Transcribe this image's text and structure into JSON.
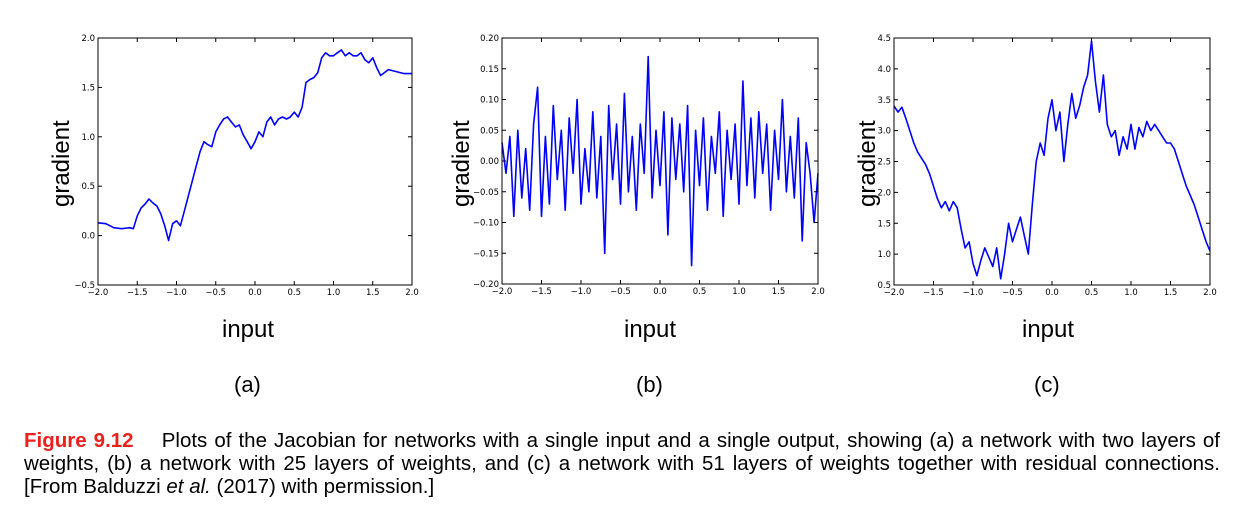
{
  "chart_data": [
    {
      "type": "line",
      "panel_label": "(a)",
      "xlabel": "input",
      "ylabel": "gradient",
      "xlim": [
        -2.0,
        2.0
      ],
      "ylim": [
        -0.5,
        2.0
      ],
      "xticks": [
        "−2.0",
        "−1.5",
        "−1.0",
        "−0.5",
        "0.0",
        "0.5",
        "1.0",
        "1.5",
        "2.0"
      ],
      "yticks": [
        "−0.5",
        "0.0",
        "0.5",
        "1.0",
        "1.5",
        "2.0"
      ],
      "x": [
        -2.0,
        -1.9,
        -1.8,
        -1.7,
        -1.6,
        -1.55,
        -1.5,
        -1.45,
        -1.4,
        -1.35,
        -1.3,
        -1.25,
        -1.2,
        -1.15,
        -1.1,
        -1.05,
        -1.0,
        -0.95,
        -0.9,
        -0.85,
        -0.8,
        -0.75,
        -0.7,
        -0.65,
        -0.6,
        -0.55,
        -0.5,
        -0.45,
        -0.4,
        -0.35,
        -0.3,
        -0.25,
        -0.2,
        -0.15,
        -0.1,
        -0.05,
        0.0,
        0.05,
        0.1,
        0.15,
        0.2,
        0.25,
        0.3,
        0.35,
        0.4,
        0.45,
        0.5,
        0.55,
        0.6,
        0.65,
        0.7,
        0.75,
        0.8,
        0.85,
        0.9,
        0.95,
        1.0,
        1.05,
        1.1,
        1.15,
        1.2,
        1.25,
        1.3,
        1.35,
        1.4,
        1.45,
        1.5,
        1.55,
        1.6,
        1.7,
        1.8,
        1.9,
        2.0
      ],
      "y": [
        0.13,
        0.12,
        0.08,
        0.07,
        0.08,
        0.07,
        0.2,
        0.28,
        0.32,
        0.37,
        0.33,
        0.3,
        0.22,
        0.1,
        -0.05,
        0.12,
        0.15,
        0.1,
        0.25,
        0.4,
        0.55,
        0.7,
        0.85,
        0.95,
        0.92,
        0.9,
        1.05,
        1.12,
        1.18,
        1.2,
        1.15,
        1.1,
        1.12,
        1.02,
        0.95,
        0.88,
        0.95,
        1.05,
        1.0,
        1.15,
        1.2,
        1.12,
        1.18,
        1.2,
        1.18,
        1.2,
        1.25,
        1.2,
        1.3,
        1.55,
        1.58,
        1.6,
        1.65,
        1.8,
        1.85,
        1.82,
        1.82,
        1.85,
        1.88,
        1.82,
        1.85,
        1.82,
        1.82,
        1.85,
        1.78,
        1.75,
        1.8,
        1.7,
        1.62,
        1.68,
        1.66,
        1.64,
        1.64
      ],
      "color": "#0000ff"
    },
    {
      "type": "line",
      "panel_label": "(b)",
      "xlabel": "input",
      "ylabel": "gradient",
      "xlim": [
        -2.0,
        2.0
      ],
      "ylim": [
        -0.2,
        0.2
      ],
      "xticks": [
        "−2.0",
        "−1.5",
        "−1.0",
        "−0.5",
        "0.0",
        "0.5",
        "1.0",
        "1.5",
        "2.0"
      ],
      "yticks": [
        "−0.20",
        "−0.15",
        "−0.10",
        "−0.05",
        "0.00",
        "0.05",
        "0.10",
        "0.15",
        "0.20"
      ],
      "x": [
        -2.0,
        -1.95,
        -1.9,
        -1.85,
        -1.8,
        -1.75,
        -1.7,
        -1.65,
        -1.6,
        -1.55,
        -1.5,
        -1.45,
        -1.4,
        -1.35,
        -1.3,
        -1.25,
        -1.2,
        -1.15,
        -1.1,
        -1.05,
        -1.0,
        -0.95,
        -0.9,
        -0.85,
        -0.8,
        -0.75,
        -0.7,
        -0.65,
        -0.6,
        -0.55,
        -0.5,
        -0.45,
        -0.4,
        -0.35,
        -0.3,
        -0.25,
        -0.2,
        -0.15,
        -0.1,
        -0.05,
        0.0,
        0.05,
        0.1,
        0.15,
        0.2,
        0.25,
        0.3,
        0.35,
        0.4,
        0.45,
        0.5,
        0.55,
        0.6,
        0.65,
        0.7,
        0.75,
        0.8,
        0.85,
        0.9,
        0.95,
        1.0,
        1.05,
        1.1,
        1.15,
        1.2,
        1.25,
        1.3,
        1.35,
        1.4,
        1.45,
        1.5,
        1.55,
        1.6,
        1.65,
        1.7,
        1.75,
        1.8,
        1.85,
        1.9,
        1.95,
        2.0
      ],
      "y": [
        0.03,
        -0.02,
        0.04,
        -0.09,
        0.05,
        -0.06,
        0.02,
        -0.08,
        0.06,
        0.12,
        -0.09,
        0.04,
        -0.07,
        0.09,
        -0.03,
        0.05,
        -0.08,
        0.07,
        -0.02,
        0.1,
        -0.07,
        0.02,
        -0.05,
        0.08,
        -0.06,
        0.04,
        -0.15,
        0.09,
        -0.03,
        0.06,
        -0.07,
        0.11,
        -0.05,
        0.04,
        -0.08,
        0.06,
        -0.02,
        0.17,
        -0.06,
        0.05,
        -0.04,
        0.08,
        -0.12,
        0.07,
        -0.03,
        0.06,
        -0.05,
        0.09,
        -0.17,
        0.05,
        -0.04,
        0.07,
        -0.08,
        0.04,
        -0.02,
        0.08,
        -0.09,
        0.05,
        -0.03,
        0.06,
        -0.07,
        0.13,
        -0.04,
        0.07,
        -0.06,
        0.08,
        -0.02,
        0.06,
        -0.08,
        0.05,
        -0.03,
        0.1,
        -0.05,
        0.04,
        -0.06,
        0.07,
        -0.13,
        0.03,
        -0.02,
        -0.1,
        -0.02
      ],
      "color": "#0000ff"
    },
    {
      "type": "line",
      "panel_label": "(c)",
      "xlabel": "input",
      "ylabel": "gradient",
      "xlim": [
        -2.0,
        2.0
      ],
      "ylim": [
        0.5,
        4.5
      ],
      "xticks": [
        "−2.0",
        "−1.5",
        "−1.0",
        "−0.5",
        "0.0",
        "0.5",
        "1.0",
        "1.5",
        "2.0"
      ],
      "yticks": [
        "0.5",
        "1.0",
        "1.5",
        "2.0",
        "2.5",
        "3.0",
        "3.5",
        "4.0",
        "4.5"
      ],
      "x": [
        -2.0,
        -1.95,
        -1.9,
        -1.85,
        -1.8,
        -1.75,
        -1.7,
        -1.65,
        -1.6,
        -1.55,
        -1.5,
        -1.45,
        -1.4,
        -1.35,
        -1.3,
        -1.25,
        -1.2,
        -1.15,
        -1.1,
        -1.05,
        -1.0,
        -0.95,
        -0.9,
        -0.85,
        -0.8,
        -0.75,
        -0.7,
        -0.65,
        -0.6,
        -0.55,
        -0.5,
        -0.45,
        -0.4,
        -0.35,
        -0.3,
        -0.25,
        -0.2,
        -0.15,
        -0.1,
        -0.05,
        0.0,
        0.05,
        0.1,
        0.15,
        0.2,
        0.25,
        0.3,
        0.35,
        0.4,
        0.45,
        0.5,
        0.55,
        0.6,
        0.65,
        0.7,
        0.75,
        0.8,
        0.85,
        0.9,
        0.95,
        1.0,
        1.05,
        1.1,
        1.15,
        1.2,
        1.25,
        1.3,
        1.35,
        1.4,
        1.45,
        1.5,
        1.55,
        1.6,
        1.65,
        1.7,
        1.75,
        1.8,
        1.85,
        1.9,
        1.95,
        2.0
      ],
      "y": [
        3.4,
        3.3,
        3.38,
        3.2,
        3.0,
        2.8,
        2.65,
        2.55,
        2.45,
        2.3,
        2.1,
        1.9,
        1.75,
        1.85,
        1.7,
        1.85,
        1.75,
        1.4,
        1.1,
        1.2,
        0.85,
        0.65,
        0.9,
        1.1,
        0.95,
        0.8,
        1.1,
        0.6,
        1.0,
        1.5,
        1.2,
        1.4,
        1.6,
        1.3,
        1.0,
        1.8,
        2.5,
        2.8,
        2.6,
        3.2,
        3.5,
        3.0,
        3.3,
        2.5,
        3.1,
        3.6,
        3.2,
        3.4,
        3.7,
        3.9,
        4.45,
        3.8,
        3.3,
        3.9,
        3.1,
        2.9,
        3.0,
        2.6,
        2.9,
        2.7,
        3.1,
        2.7,
        3.05,
        2.9,
        3.15,
        3.0,
        3.1,
        3.0,
        2.9,
        2.8,
        2.8,
        2.7,
        2.5,
        2.3,
        2.1,
        1.95,
        1.8,
        1.6,
        1.4,
        1.2,
        1.05
      ],
      "color": "#0000ff"
    }
  ],
  "caption": {
    "figure_number": "Figure 9.12",
    "text_1": "Plots of the Jacobian for networks with a single input and a single output, showing (a) a network with two layers of weights, (b) a network with 25 layers of weights, and (c) a network with 51 layers of weights together with residual connections. [From Balduzzi ",
    "italic": "et al.",
    "text_2": " (2017) with permission.]"
  }
}
